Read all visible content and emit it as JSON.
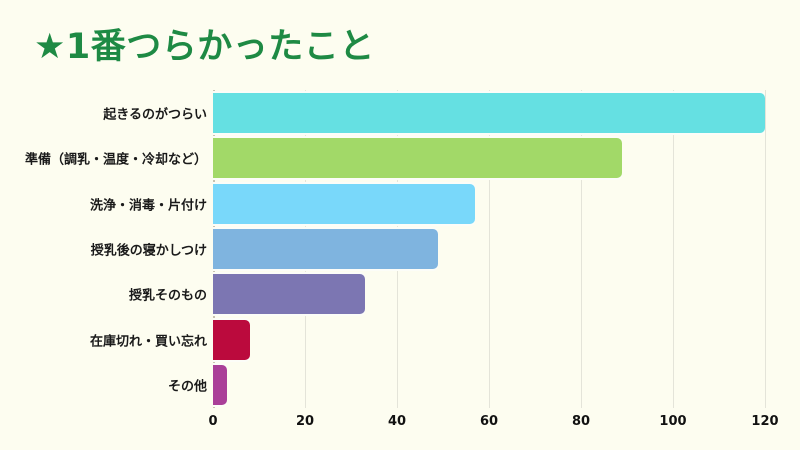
{
  "page": {
    "background_color": "#FDFDF0"
  },
  "header": {
    "title": "★1番つらかったこと",
    "title_color": "#1E8A44"
  },
  "chart_data": {
    "type": "bar",
    "orientation": "horizontal",
    "title": "★1番つらかったこと",
    "categories": [
      "起きるのがつらい",
      "準備（調乳・温度・冷却など）",
      "洗浄・消毒・片付け",
      "授乳後の寝かしつけ",
      "授乳そのもの",
      "在庫切れ・買い忘れ",
      "その他"
    ],
    "values": [
      120,
      89,
      57,
      49,
      33,
      8,
      3
    ],
    "bar_colors": [
      "#65E0E2",
      "#A2D968",
      "#79D8FA",
      "#7FB4DF",
      "#7C76B2",
      "#BB0A3D",
      "#AA3F98"
    ],
    "xlabel": "",
    "ylabel": "",
    "xlim": [
      0,
      120
    ],
    "x_ticks": [
      0,
      20,
      40,
      60,
      80,
      100,
      120
    ],
    "grid": true,
    "gridline_color": "#E4E4D9",
    "axis_line_color": "#C9C2B0",
    "legend": "none"
  }
}
